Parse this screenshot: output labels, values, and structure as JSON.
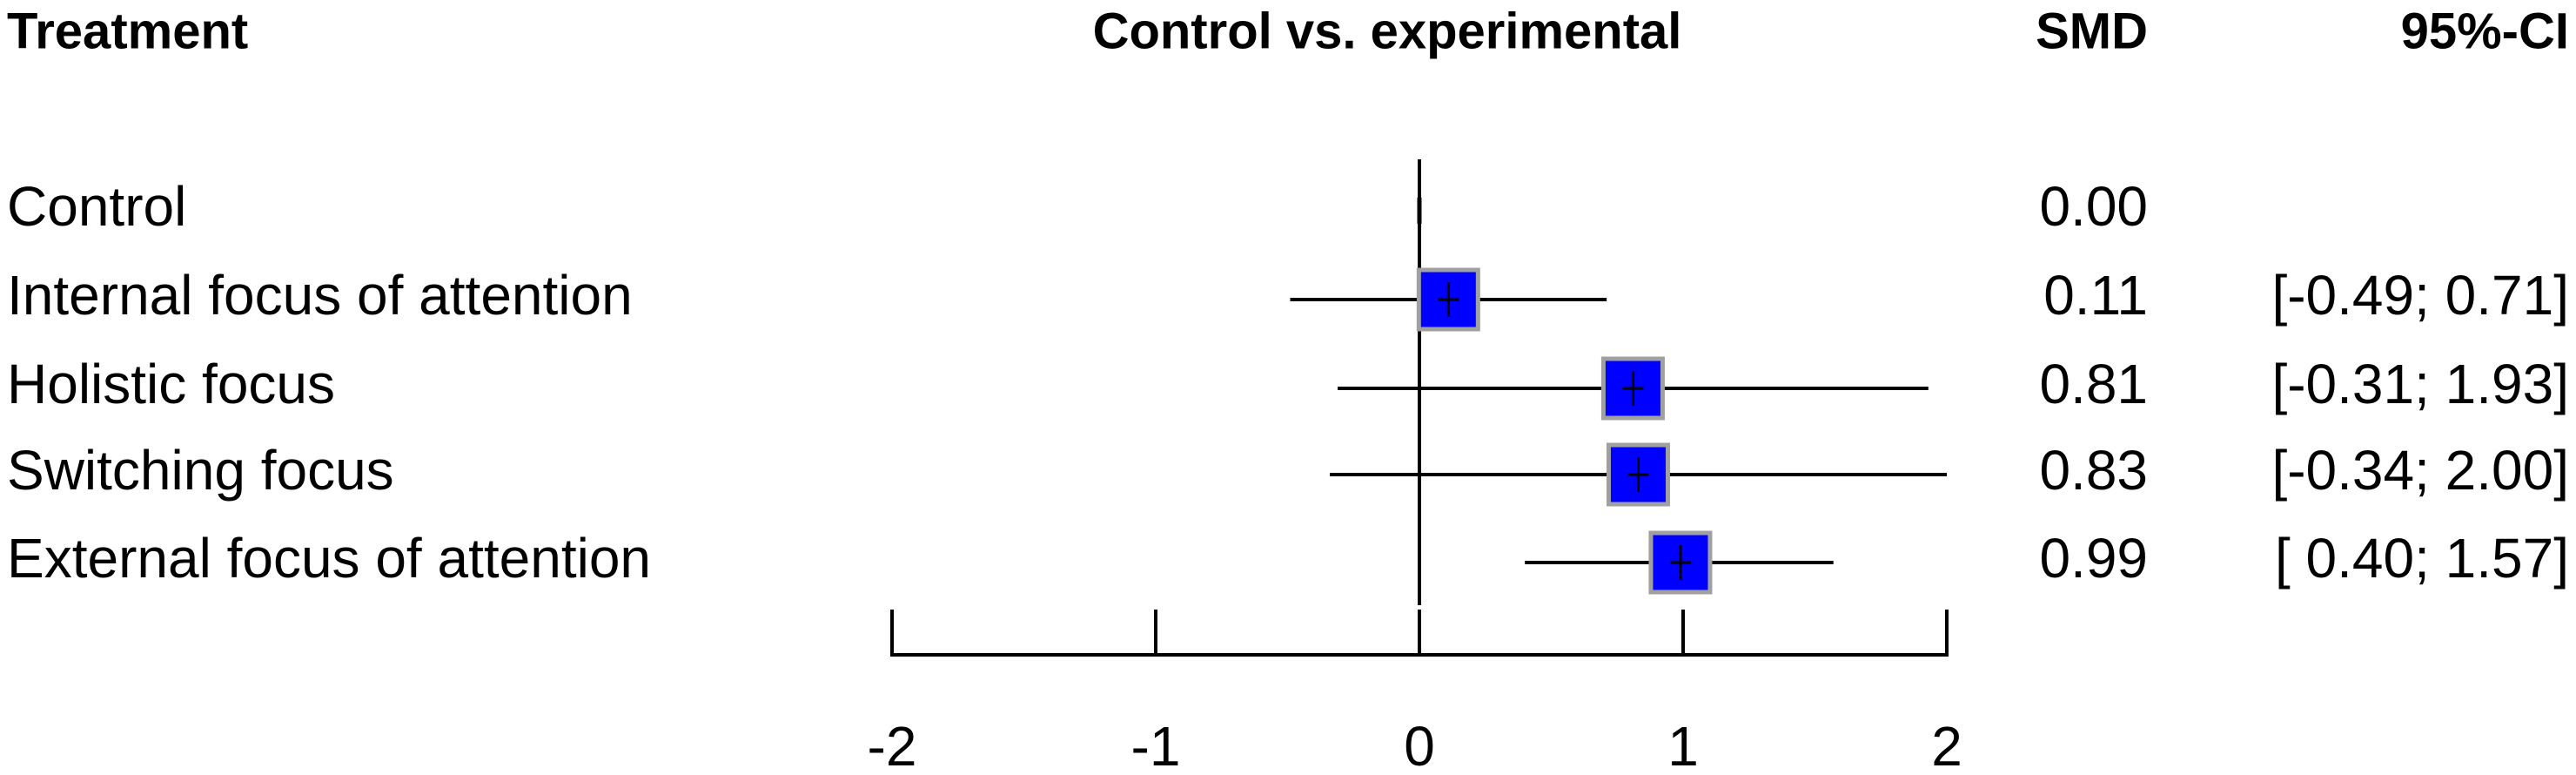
{
  "chart_data": {
    "type": "forest",
    "headers": {
      "label": "Treatment",
      "plot": "Control vs. experimental",
      "estimate": "SMD",
      "ci": "95%-CI"
    },
    "rows": [
      {
        "label": "Control",
        "smd": 0.0,
        "lower": null,
        "upper": null,
        "smd_text": "0.00",
        "ci_text": ""
      },
      {
        "label": "Internal focus of attention",
        "smd": 0.11,
        "lower": -0.49,
        "upper": 0.71,
        "smd_text": "0.11",
        "ci_text": "[-0.49; 0.71]"
      },
      {
        "label": "Holistic focus",
        "smd": 0.81,
        "lower": -0.31,
        "upper": 1.93,
        "smd_text": "0.81",
        "ci_text": "[-0.31; 1.93]"
      },
      {
        "label": "Switching focus",
        "smd": 0.83,
        "lower": -0.34,
        "upper": 2.0,
        "smd_text": "0.83",
        "ci_text": "[-0.34; 2.00]"
      },
      {
        "label": "External focus of attention",
        "smd": 0.99,
        "lower": 0.4,
        "upper": 1.57,
        "smd_text": "0.99",
        "ci_text": "[ 0.40; 1.57]"
      }
    ],
    "xlim": [
      -2,
      2
    ],
    "xticks": [
      -2,
      -1,
      0,
      1,
      2
    ],
    "xtick_labels": [
      "-2",
      "-1",
      "0",
      "1",
      "2"
    ],
    "reference_line": 0,
    "grid": false,
    "marker_color": "#0000ff",
    "marker_border_color": "#a0a0a0",
    "line_color": "#000000"
  }
}
